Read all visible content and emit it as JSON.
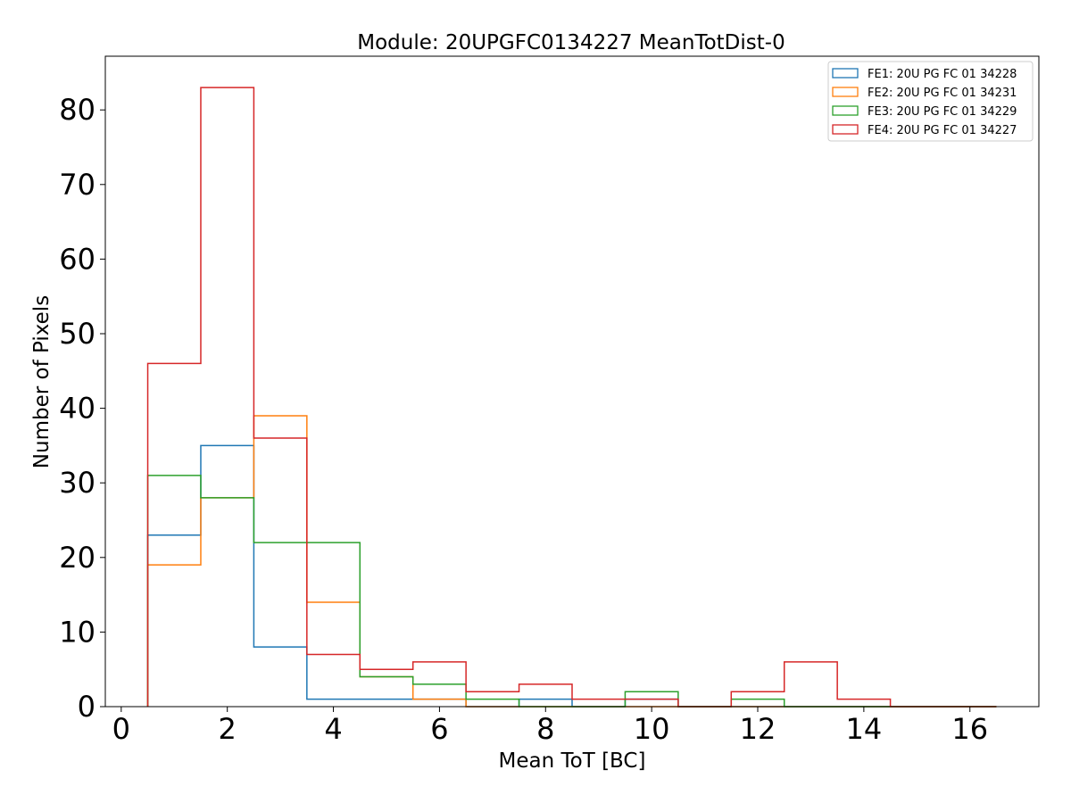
{
  "chart_data": {
    "type": "histogram-step",
    "title": "Module: 20UPGFC0134227 MeanTotDist-0",
    "xlabel": "Mean ToT [BC]",
    "ylabel": "Number of Pixels",
    "xlim": [
      -0.3,
      17.3
    ],
    "ylim": [
      0,
      87.2
    ],
    "xticks": [
      0,
      2,
      4,
      6,
      8,
      10,
      12,
      14,
      16
    ],
    "yticks": [
      0,
      10,
      20,
      30,
      40,
      50,
      60,
      70,
      80
    ],
    "bin_edges": [
      0.5,
      1.5,
      2.5,
      3.5,
      4.5,
      5.5,
      6.5,
      7.5,
      8.5,
      9.5,
      10.5,
      11.5,
      12.5,
      13.5,
      14.5,
      15.5,
      16.5
    ],
    "legend_position": "top-right",
    "grid": false,
    "series": [
      {
        "name": "FE1: 20U PG FC 01 34228",
        "color": "#1f77b4",
        "values": [
          23,
          35,
          8,
          1,
          1,
          1,
          0,
          1,
          0,
          1,
          0,
          0,
          0,
          0,
          0,
          0
        ]
      },
      {
        "name": "FE2: 20U PG FC 01 34231",
        "color": "#ff7f0e",
        "values": [
          19,
          28,
          39,
          14,
          4,
          1,
          0,
          0,
          0,
          0,
          0,
          0,
          0,
          0,
          0,
          0
        ]
      },
      {
        "name": "FE3: 20U PG FC 01 34229",
        "color": "#2ca02c",
        "values": [
          31,
          28,
          22,
          22,
          4,
          3,
          1,
          0,
          0,
          2,
          0,
          1,
          0,
          0,
          0,
          0
        ]
      },
      {
        "name": "FE4: 20U PG FC 01 34227",
        "color": "#d62728",
        "values": [
          46,
          83,
          36,
          7,
          5,
          6,
          2,
          3,
          1,
          1,
          0,
          2,
          6,
          1,
          0,
          0
        ]
      }
    ]
  }
}
